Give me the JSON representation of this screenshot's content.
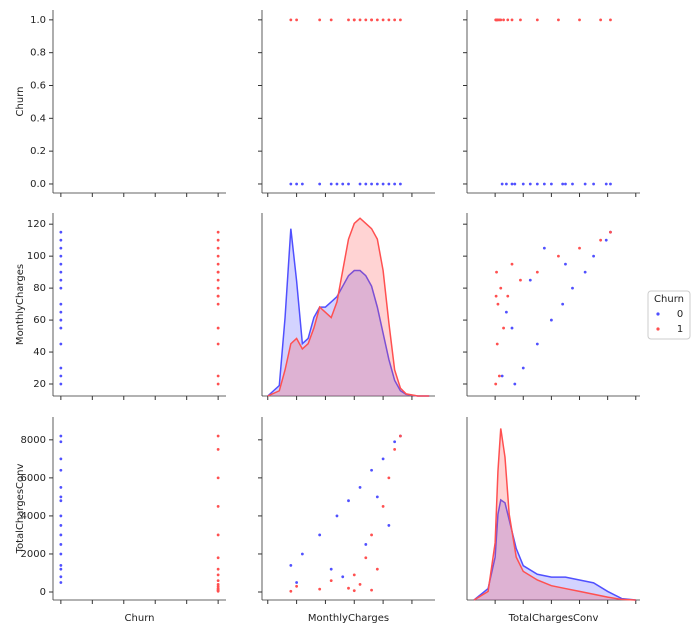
{
  "chart_data": [
    {
      "type": "scatter",
      "ylabel": "Churn",
      "show_yticklabels": true,
      "xlim": [
        -0.05,
        1.05
      ],
      "ylim": [
        -0.055,
        1.06
      ],
      "xticks": [
        0,
        0.2,
        0.4,
        0.6,
        0.8,
        1
      ],
      "yticks": [
        {
          "value": 0,
          "label": "0.0"
        },
        {
          "value": 0.2,
          "label": "0.2"
        },
        {
          "value": 0.4,
          "label": "0.4"
        },
        {
          "value": 0.6,
          "label": "0.6"
        },
        {
          "value": 0.8,
          "label": "0.8"
        },
        {
          "value": 1,
          "label": "1.0"
        }
      ],
      "series": []
    },
    {
      "type": "scatter",
      "xlim": [
        -5,
        145
      ],
      "ylim": [
        -0.055,
        1.06
      ],
      "xticks": [
        0,
        25,
        50,
        75,
        100,
        125
      ],
      "yticks": [
        0,
        0.2,
        0.4,
        0.6,
        0.8,
        1
      ],
      "series": [
        {
          "name": "0",
          "color": "#5050ff",
          "x": [
            20,
            25,
            30,
            45,
            55,
            60,
            70,
            80,
            90,
            100,
            110,
            115,
            105,
            85,
            65,
            95
          ],
          "values": [
            0,
            0,
            0,
            0,
            0,
            0,
            0,
            0,
            0,
            0,
            0,
            0,
            0,
            0,
            0,
            0
          ]
        },
        {
          "name": "1",
          "color": "#ff5050",
          "x": [
            20,
            25,
            45,
            70,
            75,
            80,
            85,
            90,
            95,
            100,
            105,
            110,
            75,
            55,
            90,
            115
          ],
          "values": [
            1,
            1,
            1,
            1,
            1,
            1,
            1,
            1,
            1,
            1,
            1,
            1,
            1,
            1,
            1,
            1
          ]
        }
      ]
    },
    {
      "type": "scatter",
      "xlim": [
        -2000,
        10300
      ],
      "ylim": [
        -0.055,
        1.06
      ],
      "xticks": [
        0,
        2000,
        4000,
        6000,
        8000,
        10000
      ],
      "yticks": [
        0,
        0.2,
        0.4,
        0.6,
        0.8,
        1
      ],
      "series": [
        {
          "name": "0",
          "color": "#5050ff",
          "x": [
            1400,
            500,
            2000,
            3000,
            1200,
            4000,
            4800,
            5500,
            6400,
            7000,
            7900,
            8200,
            3500,
            2500,
            800,
            5000
          ],
          "values": [
            0,
            0,
            0,
            0,
            0,
            0,
            0,
            0,
            0,
            0,
            0,
            0,
            0,
            0,
            0,
            0
          ]
        },
        {
          "name": "1",
          "color": "#ff5050",
          "x": [
            40,
            300,
            150,
            200,
            900,
            400,
            1800,
            3000,
            1200,
            4500,
            6000,
            7500,
            70,
            600,
            100,
            8200
          ],
          "values": [
            1,
            1,
            1,
            1,
            1,
            1,
            1,
            1,
            1,
            1,
            1,
            1,
            1,
            1,
            1,
            1
          ]
        }
      ]
    },
    {
      "type": "scatter",
      "ylabel": "MonthlyCharges",
      "show_yticklabels": true,
      "xlim": [
        -0.05,
        1.05
      ],
      "ylim": [
        12.5,
        127
      ],
      "xticks": [
        0,
        0.2,
        0.4,
        0.6,
        0.8,
        1
      ],
      "yticks": [
        20,
        40,
        60,
        80,
        100,
        120
      ],
      "series": [
        {
          "name": "0",
          "color": "#5050ff",
          "x": [
            0,
            0,
            0,
            0,
            0,
            0,
            0,
            0,
            0,
            0,
            0,
            0,
            0,
            0,
            0,
            0
          ],
          "values": [
            20,
            25,
            30,
            45,
            55,
            60,
            70,
            80,
            90,
            100,
            110,
            115,
            105,
            85,
            65,
            95
          ]
        },
        {
          "name": "1",
          "color": "#ff5050",
          "x": [
            1,
            1,
            1,
            1,
            1,
            1,
            1,
            1,
            1,
            1,
            1,
            1,
            1,
            1,
            1,
            1
          ],
          "values": [
            20,
            25,
            45,
            70,
            75,
            80,
            85,
            90,
            95,
            100,
            105,
            110,
            75,
            55,
            90,
            115
          ]
        }
      ]
    },
    {
      "type": "kde",
      "legend_title": "Churn",
      "xlim": [
        -5,
        145
      ],
      "ylim": [
        0,
        0.035
      ],
      "xticks": [
        0,
        25,
        50,
        75,
        100,
        125
      ],
      "x": [
        0,
        10,
        15,
        20,
        25,
        30,
        35,
        40,
        45,
        50,
        55,
        60,
        65,
        70,
        75,
        80,
        85,
        90,
        95,
        100,
        105,
        110,
        115,
        120,
        130,
        140
      ],
      "series": [
        {
          "name": "0",
          "color": "#5050ff",
          "values": [
            0,
            0.002,
            0.015,
            0.032,
            0.022,
            0.01,
            0.011,
            0.015,
            0.017,
            0.017,
            0.018,
            0.019,
            0.021,
            0.023,
            0.024,
            0.024,
            0.023,
            0.021,
            0.017,
            0.012,
            0.007,
            0.003,
            0.001,
            0.0003,
            0,
            0
          ]
        },
        {
          "name": "1",
          "color": "#ff5050",
          "values": [
            0,
            0.001,
            0.005,
            0.01,
            0.011,
            0.009,
            0.01,
            0.013,
            0.017,
            0.016,
            0.015,
            0.018,
            0.024,
            0.03,
            0.033,
            0.034,
            0.033,
            0.032,
            0.03,
            0.024,
            0.014,
            0.005,
            0.0015,
            0.0004,
            0,
            0
          ]
        }
      ]
    },
    {
      "type": "scatter",
      "xlim": [
        -2000,
        10300
      ],
      "ylim": [
        12.5,
        127
      ],
      "xticks": [
        0,
        2000,
        4000,
        6000,
        8000,
        10000
      ],
      "yticks": [
        20,
        40,
        60,
        80,
        100,
        120
      ],
      "series": [
        {
          "name": "0",
          "color": "#5050ff",
          "x": [
            1400,
            500,
            2000,
            3000,
            1200,
            4000,
            4800,
            5500,
            6400,
            7000,
            7900,
            8200,
            3500,
            2500,
            800,
            5000
          ],
          "values": [
            20,
            25,
            30,
            45,
            55,
            60,
            70,
            80,
            90,
            100,
            110,
            115,
            105,
            85,
            65,
            95
          ]
        },
        {
          "name": "1",
          "color": "#ff5050",
          "x": [
            40,
            300,
            150,
            200,
            900,
            400,
            1800,
            3000,
            1200,
            4500,
            6000,
            7500,
            70,
            600,
            100,
            8200
          ],
          "values": [
            20,
            25,
            45,
            70,
            75,
            80,
            85,
            90,
            95,
            100,
            105,
            110,
            75,
            55,
            90,
            115
          ]
        }
      ]
    },
    {
      "type": "scatter",
      "ylabel": "TotalChargesConv",
      "xlabel": "Churn",
      "show_yticklabels": true,
      "xlim": [
        -0.05,
        1.05
      ],
      "ylim": [
        -420,
        9200
      ],
      "xticks": [
        0,
        0.2,
        0.4,
        0.6,
        0.8,
        1
      ],
      "yticks": [
        0,
        2000,
        4000,
        6000,
        8000
      ],
      "series": [
        {
          "name": "0",
          "color": "#5050ff",
          "x": [
            0,
            0,
            0,
            0,
            0,
            0,
            0,
            0,
            0,
            0,
            0,
            0,
            0,
            0,
            0,
            0
          ],
          "values": [
            1400,
            500,
            2000,
            3000,
            1200,
            4000,
            4800,
            5500,
            6400,
            7000,
            7900,
            8200,
            3500,
            2500,
            800,
            5000
          ]
        },
        {
          "name": "1",
          "color": "#ff5050",
          "x": [
            1,
            1,
            1,
            1,
            1,
            1,
            1,
            1,
            1,
            1,
            1,
            1,
            1,
            1,
            1,
            1
          ],
          "values": [
            40,
            300,
            150,
            200,
            900,
            400,
            1800,
            3000,
            1200,
            4500,
            6000,
            7500,
            70,
            600,
            100,
            8200
          ]
        }
      ]
    },
    {
      "type": "scatter",
      "xlabel": "MonthlyCharges",
      "xlim": [
        -5,
        145
      ],
      "ylim": [
        -420,
        9200
      ],
      "xticks": [
        0,
        25,
        50,
        75,
        100,
        125
      ],
      "yticks": [
        0,
        2000,
        4000,
        6000,
        8000
      ],
      "series": [
        {
          "name": "0",
          "color": "#5050ff",
          "x": [
            20,
            25,
            30,
            45,
            55,
            60,
            70,
            80,
            90,
            100,
            110,
            115,
            105,
            85,
            65,
            95
          ],
          "values": [
            1400,
            500,
            2000,
            3000,
            1200,
            4000,
            4800,
            5500,
            6400,
            7000,
            7900,
            8200,
            3500,
            2500,
            800,
            5000
          ]
        },
        {
          "name": "1",
          "color": "#ff5050",
          "x": [
            20,
            25,
            45,
            70,
            75,
            80,
            85,
            90,
            95,
            100,
            105,
            110,
            75,
            55,
            90,
            115
          ],
          "values": [
            40,
            300,
            150,
            200,
            900,
            400,
            1800,
            3000,
            1200,
            4500,
            6000,
            7500,
            70,
            600,
            100,
            8200
          ]
        }
      ]
    },
    {
      "type": "kde",
      "xlabel": "TotalChargesConv",
      "xlim": [
        -2000,
        10300
      ],
      "ylim": [
        0,
        0.00064
      ],
      "xticks": [
        0,
        2000,
        4000,
        6000,
        8000,
        10000
      ],
      "x": [
        -1500,
        -500,
        0,
        200,
        400,
        700,
        1000,
        1500,
        2000,
        3000,
        4000,
        5000,
        6000,
        7000,
        8000,
        9000,
        10000
      ],
      "series": [
        {
          "name": "0",
          "color": "#5050ff",
          "values": [
            0,
            4e-05,
            0.00015,
            0.0003,
            0.00035,
            0.00034,
            0.00028,
            0.00018,
            0.00012,
            9e-05,
            8e-05,
            8e-05,
            7e-05,
            6e-05,
            3e-05,
            5e-06,
            0
          ]
        },
        {
          "name": "1",
          "color": "#ff5050",
          "values": [
            0,
            3e-05,
            0.0002,
            0.00045,
            0.0006,
            0.0005,
            0.0003,
            0.00015,
            0.0001,
            7e-05,
            5e-05,
            4e-05,
            3e-05,
            2e-05,
            1e-05,
            2e-06,
            0
          ]
        }
      ]
    }
  ]
}
